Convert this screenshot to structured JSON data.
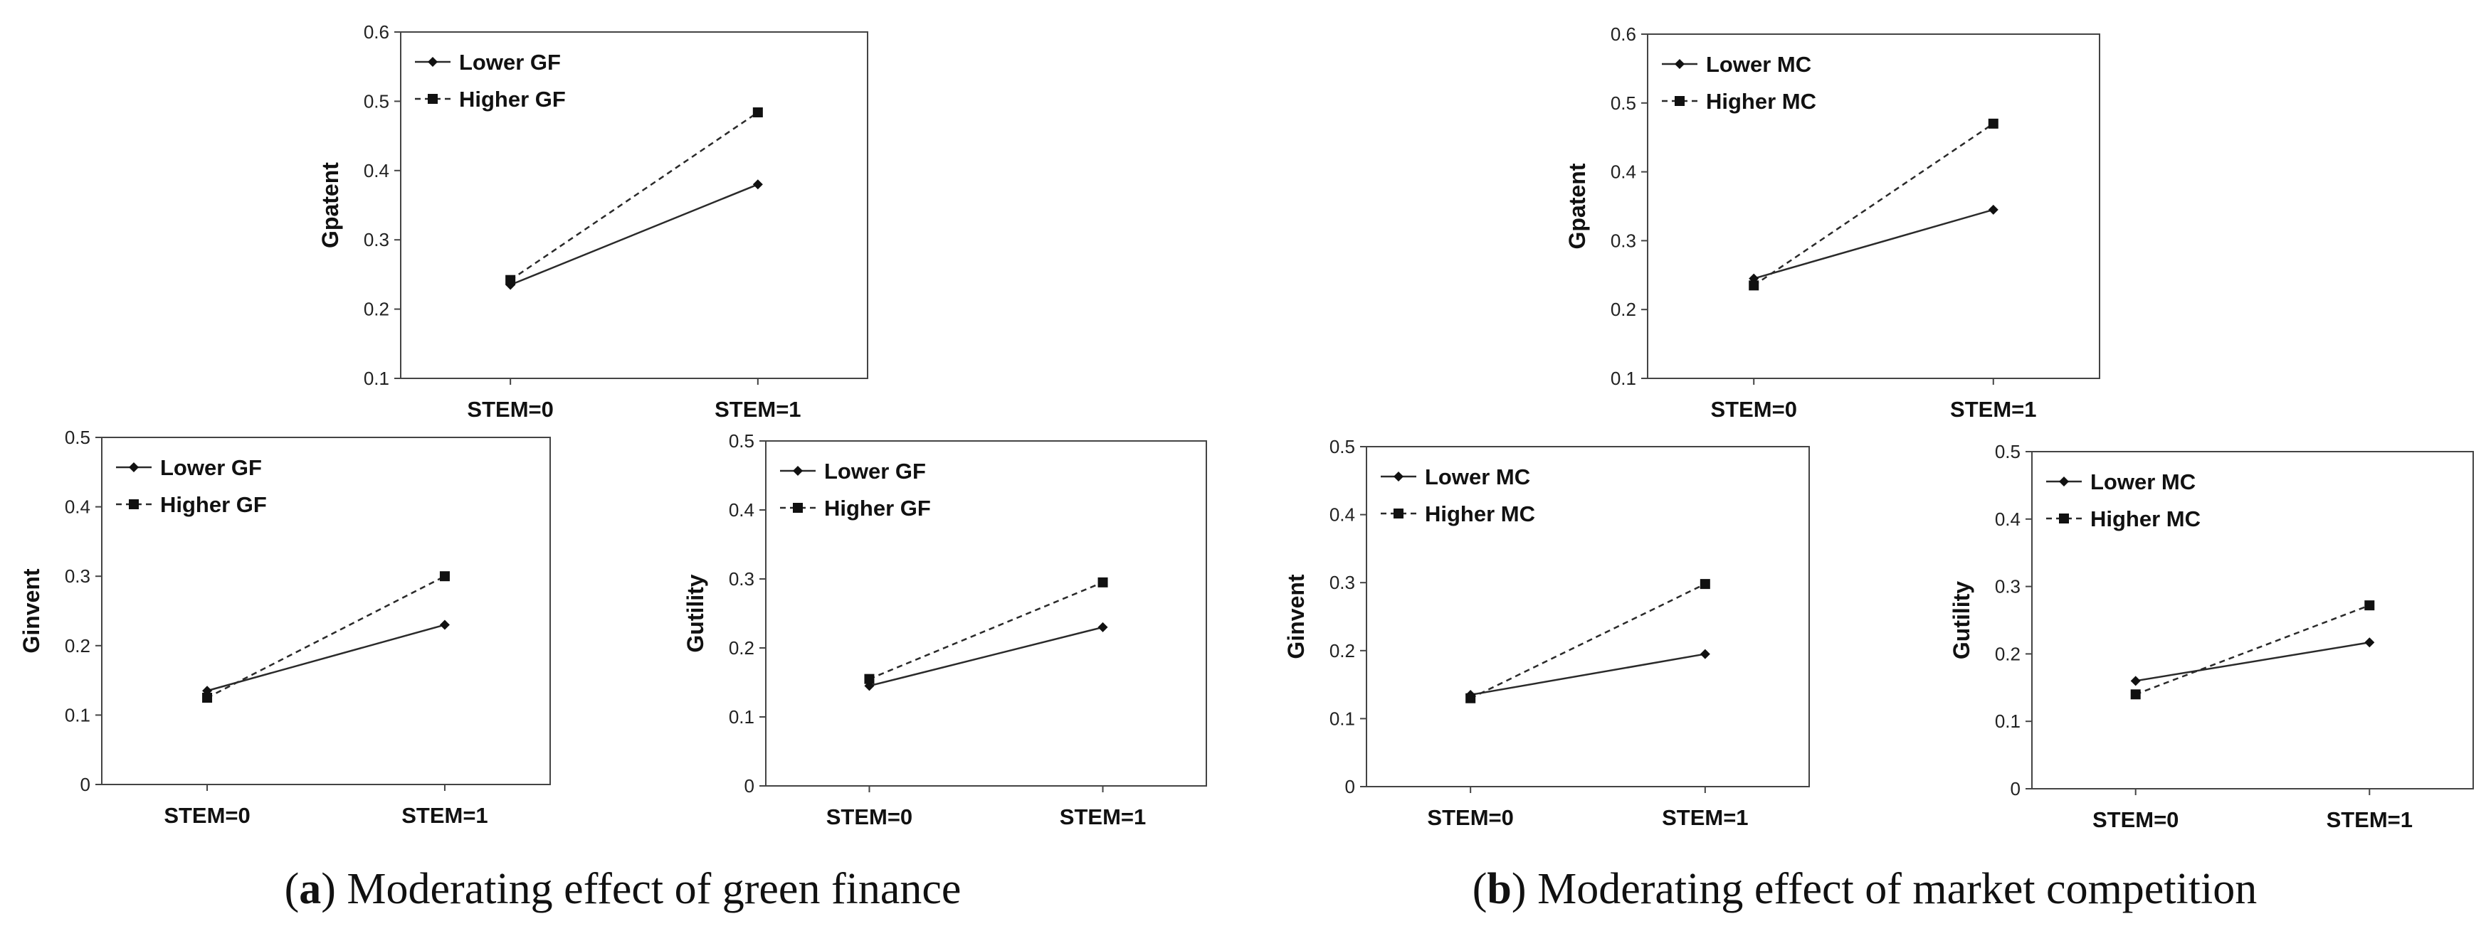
{
  "chart_data": [
    {
      "type": "line",
      "panel": "a",
      "ylabel": "Gpatent",
      "ylim": [
        0.1,
        0.6
      ],
      "yticks": [
        0.1,
        0.2,
        0.3,
        0.4,
        0.5,
        0.6
      ],
      "categories": [
        "STEM=0",
        "STEM=1"
      ],
      "legend_position": "top-left",
      "series": [
        {
          "name": "Lower GF",
          "values": [
            0.235,
            0.38
          ],
          "style": "solid",
          "marker": "diamond"
        },
        {
          "name": "Higher GF",
          "values": [
            0.242,
            0.484
          ],
          "style": "dashed",
          "marker": "square"
        }
      ]
    },
    {
      "type": "line",
      "panel": "a",
      "ylabel": "Ginvent",
      "ylim": [
        0,
        0.5
      ],
      "yticks": [
        0,
        0.1,
        0.2,
        0.3,
        0.4,
        0.5
      ],
      "categories": [
        "STEM=0",
        "STEM=1"
      ],
      "legend_position": "top-left",
      "series": [
        {
          "name": "Lower GF",
          "values": [
            0.135,
            0.23
          ],
          "style": "solid",
          "marker": "diamond"
        },
        {
          "name": "Higher GF",
          "values": [
            0.125,
            0.3
          ],
          "style": "dashed",
          "marker": "square"
        }
      ]
    },
    {
      "type": "line",
      "panel": "a",
      "ylabel": "Gutility",
      "ylim": [
        0,
        0.5
      ],
      "yticks": [
        0,
        0.1,
        0.2,
        0.3,
        0.4,
        0.5
      ],
      "categories": [
        "STEM=0",
        "STEM=1"
      ],
      "legend_position": "top-left",
      "series": [
        {
          "name": "Lower GF",
          "values": [
            0.145,
            0.23
          ],
          "style": "solid",
          "marker": "diamond"
        },
        {
          "name": "Higher GF",
          "values": [
            0.155,
            0.295
          ],
          "style": "dashed",
          "marker": "square"
        }
      ]
    },
    {
      "type": "line",
      "panel": "b",
      "ylabel": "Gpatent",
      "ylim": [
        0.1,
        0.6
      ],
      "yticks": [
        0.1,
        0.2,
        0.3,
        0.4,
        0.5,
        0.6
      ],
      "categories": [
        "STEM=0",
        "STEM=1"
      ],
      "legend_position": "top-left",
      "series": [
        {
          "name": "Lower MC",
          "values": [
            0.245,
            0.345
          ],
          "style": "solid",
          "marker": "diamond"
        },
        {
          "name": "Higher MC",
          "values": [
            0.235,
            0.47
          ],
          "style": "dashed",
          "marker": "square"
        }
      ]
    },
    {
      "type": "line",
      "panel": "b",
      "ylabel": "Ginvent",
      "ylim": [
        0,
        0.5
      ],
      "yticks": [
        0,
        0.1,
        0.2,
        0.3,
        0.4,
        0.5
      ],
      "categories": [
        "STEM=0",
        "STEM=1"
      ],
      "legend_position": "top-left",
      "series": [
        {
          "name": "Lower MC",
          "values": [
            0.135,
            0.195
          ],
          "style": "solid",
          "marker": "diamond"
        },
        {
          "name": "Higher MC",
          "values": [
            0.13,
            0.298
          ],
          "style": "dashed",
          "marker": "square"
        }
      ]
    },
    {
      "type": "line",
      "panel": "b",
      "ylabel": "Gutility",
      "ylim": [
        0,
        0.5
      ],
      "yticks": [
        0,
        0.1,
        0.2,
        0.3,
        0.4,
        0.5
      ],
      "categories": [
        "STEM=0",
        "STEM=1"
      ],
      "legend_position": "top-left",
      "series": [
        {
          "name": "Lower MC",
          "values": [
            0.16,
            0.217
          ],
          "style": "solid",
          "marker": "diamond"
        },
        {
          "name": "Higher MC",
          "values": [
            0.14,
            0.272
          ],
          "style": "dashed",
          "marker": "square"
        }
      ]
    }
  ],
  "captions": {
    "a": {
      "letter": "a",
      "text": " Moderating effect of green finance"
    },
    "b": {
      "letter": "b",
      "text": " Moderating effect of market competition"
    }
  }
}
